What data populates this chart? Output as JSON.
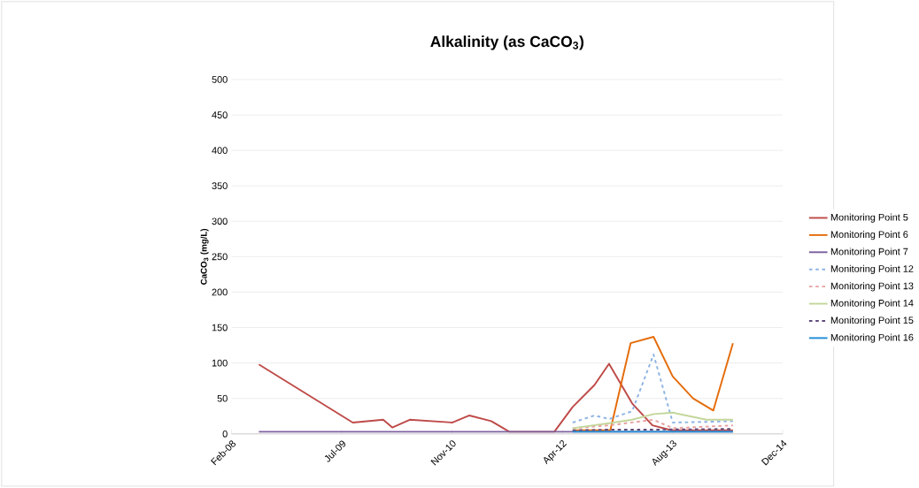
{
  "chart_data": {
    "type": "line",
    "title": "Alkalinity (as CaCO$_{3}$)",
    "ylabel": "CaCO$_{3}$ (mg/L)",
    "xlim": [
      "2008-02-22",
      "2014-12-27"
    ],
    "xticks": [
      {
        "value": "2008-02-22",
        "label": "Feb-08"
      },
      {
        "value": "2009-07-06",
        "label": "Jul-09"
      },
      {
        "value": "2010-11-18",
        "label": "Nov-10"
      },
      {
        "value": "2012-04-01",
        "label": "Apr-12"
      },
      {
        "value": "2013-08-14",
        "label": "Aug-13"
      },
      {
        "value": "2014-12-27",
        "label": "Dec-14"
      }
    ],
    "ylim": [
      0,
      500
    ],
    "yticks": [
      0,
      50,
      100,
      150,
      200,
      250,
      300,
      350,
      400,
      450,
      500
    ],
    "grid": "y",
    "legend": "right",
    "marker": "none",
    "series": [
      {
        "name": "Monitoring Point 5",
        "color": "#be4b48",
        "line_style": "solid",
        "x": [
          "2008-06-25",
          "2009-08-25",
          "2010-01-10",
          "2010-02-20",
          "2010-05-10",
          "2010-11-20",
          "2011-02-05",
          "2011-05-15",
          "2011-08-05",
          "2012-02-25",
          "2012-05-18",
          "2012-08-25",
          "2012-10-30",
          "2013-02-12",
          "2013-05-15",
          "2013-08-10",
          "2014-01-15",
          "2014-05-15"
        ],
        "values": [
          98,
          16,
          20,
          9,
          20,
          16,
          26,
          18,
          3,
          3,
          38,
          69,
          99,
          43,
          12,
          5,
          5,
          5
        ]
      },
      {
        "name": "Monitoring Point 6",
        "color": "#e46c0a",
        "line_style": "solid",
        "x": [
          "2012-05-18",
          "2012-11-05",
          "2013-02-05",
          "2013-05-20",
          "2013-08-15",
          "2013-11-15",
          "2014-02-15",
          "2014-05-15"
        ],
        "values": [
          5,
          5,
          128,
          137,
          81,
          50,
          33,
          128
        ]
      },
      {
        "name": "Monitoring Point 7",
        "color": "#7d60a0",
        "line_style": "solid",
        "x": [
          "2008-06-25",
          "2010-05-10",
          "2012-02-25",
          "2014-05-15"
        ],
        "values": [
          3,
          3,
          3,
          3
        ]
      },
      {
        "name": "Monitoring Point 12",
        "color": "#8eb4e3",
        "line_style": "dashed",
        "x": [
          "2012-05-18",
          "2012-08-25",
          "2012-10-30",
          "2013-02-12",
          "2013-05-20",
          "2013-08-15",
          "2014-01-15",
          "2014-05-15"
        ],
        "values": [
          16,
          26,
          21,
          32,
          112,
          16,
          17,
          18
        ]
      },
      {
        "name": "Monitoring Point 13",
        "color": "#e6a0a0",
        "line_style": "dashed",
        "x": [
          "2012-05-18",
          "2012-10-30",
          "2013-05-20",
          "2013-08-15",
          "2014-05-15"
        ],
        "values": [
          8,
          12,
          20,
          8,
          12
        ]
      },
      {
        "name": "Monitoring Point 14",
        "color": "#c3d69b",
        "line_style": "solid",
        "x": [
          "2012-05-18",
          "2012-10-30",
          "2013-02-12",
          "2013-05-20",
          "2013-08-15",
          "2014-01-15",
          "2014-05-15"
        ],
        "values": [
          8,
          15,
          20,
          28,
          30,
          20,
          20
        ]
      },
      {
        "name": "Monitoring Point 15",
        "color": "#604a7b",
        "line_style": "dashed",
        "x": [
          "2012-05-18",
          "2012-10-30",
          "2013-05-20",
          "2014-05-15"
        ],
        "values": [
          5,
          6,
          6,
          7
        ]
      },
      {
        "name": "Monitoring Point 16",
        "color": "#1f8dd6",
        "line_style": "solid",
        "x": [
          "2012-05-18",
          "2013-05-20",
          "2014-05-15"
        ],
        "values": [
          3,
          3,
          3
        ]
      }
    ]
  }
}
